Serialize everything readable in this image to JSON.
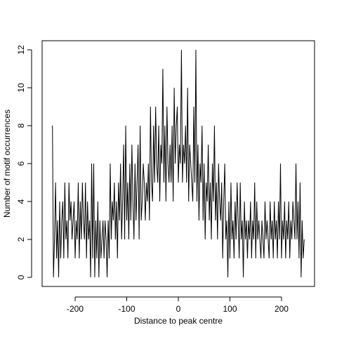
{
  "chart_data": {
    "type": "line",
    "xlabel": "Distance to peak centre",
    "ylabel": "Number of motif occurrences",
    "color": "#000000",
    "xlim": [
      -264,
      264
    ],
    "ylim": [
      -0.48,
      12.48
    ],
    "xticks": [
      -200,
      -100,
      0,
      100,
      200
    ],
    "yticks": [
      0,
      2,
      4,
      6,
      8,
      10,
      12
    ],
    "x": [
      -244,
      -242,
      -240,
      -238,
      -236,
      -234,
      -232,
      -230,
      -228,
      -226,
      -224,
      -222,
      -220,
      -218,
      -216,
      -214,
      -212,
      -210,
      -208,
      -206,
      -204,
      -202,
      -200,
      -198,
      -196,
      -194,
      -192,
      -190,
      -188,
      -186,
      -184,
      -182,
      -180,
      -178,
      -176,
      -174,
      -172,
      -170,
      -168,
      -166,
      -164,
      -162,
      -160,
      -158,
      -156,
      -154,
      -152,
      -150,
      -148,
      -146,
      -144,
      -142,
      -140,
      -138,
      -136,
      -134,
      -132,
      -130,
      -128,
      -126,
      -124,
      -122,
      -120,
      -118,
      -116,
      -114,
      -112,
      -110,
      -108,
      -106,
      -104,
      -102,
      -100,
      -98,
      -96,
      -94,
      -92,
      -90,
      -88,
      -86,
      -84,
      -82,
      -80,
      -78,
      -76,
      -74,
      -72,
      -70,
      -68,
      -66,
      -64,
      -62,
      -60,
      -58,
      -56,
      -54,
      -52,
      -50,
      -48,
      -46,
      -44,
      -42,
      -40,
      -38,
      -36,
      -34,
      -32,
      -30,
      -28,
      -26,
      -24,
      -22,
      -20,
      -18,
      -16,
      -14,
      -12,
      -10,
      -8,
      -6,
      -4,
      -2,
      0,
      2,
      4,
      6,
      8,
      10,
      12,
      14,
      16,
      18,
      20,
      22,
      24,
      26,
      28,
      30,
      32,
      34,
      36,
      38,
      40,
      42,
      44,
      46,
      48,
      50,
      52,
      54,
      56,
      58,
      60,
      62,
      64,
      66,
      68,
      70,
      72,
      74,
      76,
      78,
      80,
      82,
      84,
      86,
      88,
      90,
      92,
      94,
      96,
      98,
      100,
      102,
      104,
      106,
      108,
      110,
      112,
      114,
      116,
      118,
      120,
      122,
      124,
      126,
      128,
      130,
      132,
      134,
      136,
      138,
      140,
      142,
      144,
      146,
      148,
      150,
      152,
      154,
      156,
      158,
      160,
      162,
      164,
      166,
      168,
      170,
      172,
      174,
      176,
      178,
      180,
      182,
      184,
      186,
      188,
      190,
      192,
      194,
      196,
      198,
      200,
      202,
      204,
      206,
      208,
      210,
      212,
      214,
      216,
      218,
      220,
      222,
      224,
      226,
      228,
      230,
      232,
      234,
      236,
      238,
      240,
      242,
      244
    ],
    "values": [
      8,
      0,
      2,
      5,
      1,
      3,
      0,
      4,
      1,
      3,
      4,
      1,
      5,
      2,
      3,
      1,
      5,
      3,
      4,
      2,
      3,
      4,
      1,
      3,
      2,
      5,
      1,
      4,
      2,
      5,
      3,
      2,
      5,
      1,
      4,
      2,
      3,
      0,
      6,
      1,
      6,
      0,
      3,
      1,
      4,
      0,
      3,
      1,
      2,
      3,
      1,
      3,
      2,
      0,
      3,
      1,
      6,
      2,
      4,
      3,
      5,
      2,
      4,
      1,
      5,
      3,
      6,
      2,
      4,
      7,
      2,
      8,
      3,
      5,
      2,
      6,
      3,
      7,
      4,
      2,
      6,
      3,
      5,
      7,
      2,
      8,
      3,
      4,
      6,
      5,
      3,
      5,
      4,
      6,
      3,
      9,
      5,
      4,
      8,
      5,
      9,
      6,
      5,
      8,
      4,
      7,
      6,
      11,
      5,
      8,
      4,
      9,
      6,
      5,
      7,
      5,
      8,
      4,
      10,
      6,
      8,
      9,
      5,
      7,
      6,
      12,
      5,
      7,
      6,
      8,
      5,
      10,
      4,
      7,
      6,
      5,
      4,
      9,
      5,
      12,
      4,
      7,
      3,
      6,
      5,
      8,
      3,
      6,
      2,
      5,
      4,
      7,
      3,
      5,
      2,
      6,
      4,
      8,
      3,
      5,
      2,
      6,
      4,
      3,
      5,
      1,
      4,
      6,
      2,
      3,
      0,
      4,
      1,
      5,
      2,
      3,
      1,
      4,
      2,
      5,
      3,
      1,
      5,
      2,
      3,
      0,
      4,
      2,
      3,
      1,
      3,
      2,
      4,
      1,
      3,
      2,
      5,
      1,
      4,
      2,
      3,
      2,
      1,
      3,
      2,
      1,
      4,
      2,
      3,
      2,
      1,
      4,
      2,
      3,
      1,
      4,
      2,
      3,
      1,
      4,
      2,
      6,
      1,
      3,
      2,
      4,
      1,
      3,
      2,
      4,
      1,
      3,
      2,
      4,
      3,
      2,
      6,
      2,
      4,
      1,
      5,
      0,
      3,
      1,
      2
    ]
  }
}
